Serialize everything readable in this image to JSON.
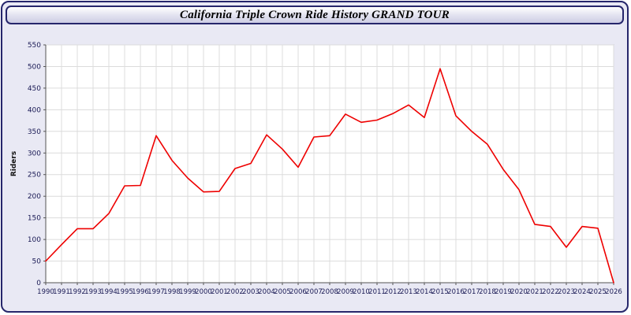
{
  "title": "California Triple Crown Ride History GRAND TOUR",
  "colors": {
    "window_bg": "#e9e9f4",
    "window_border": "#26266b",
    "plot_bg": "#ffffff",
    "grid": "#dcdcdc",
    "line": "#ee0000",
    "tick_label": "#1a1a55"
  },
  "chart_data": {
    "type": "line",
    "title": "California Triple Crown Ride History GRAND TOUR",
    "xlabel": "",
    "ylabel": "Riders",
    "ylim": [
      0,
      550
    ],
    "ytick_step": 50,
    "grid": true,
    "legend": "none",
    "x": [
      1990,
      1991,
      1992,
      1993,
      1994,
      1995,
      1996,
      1997,
      1998,
      1999,
      2000,
      2001,
      2002,
      2003,
      2004,
      2005,
      2006,
      2007,
      2008,
      2009,
      2010,
      2011,
      2012,
      2013,
      2014,
      2015,
      2016,
      2017,
      2018,
      2019,
      2020,
      2021,
      2022,
      2023,
      2024,
      2025,
      2026
    ],
    "series": [
      {
        "name": "Riders",
        "color": "#ee0000",
        "values": [
          50,
          88,
          125,
          125,
          160,
          224,
          225,
          340,
          283,
          242,
          210,
          211,
          264,
          276,
          342,
          309,
          267,
          337,
          340,
          390,
          371,
          376,
          391,
          411,
          382,
          495,
          386,
          350,
          320,
          262,
          215,
          135,
          130,
          82,
          130,
          126,
          0
        ]
      }
    ]
  }
}
